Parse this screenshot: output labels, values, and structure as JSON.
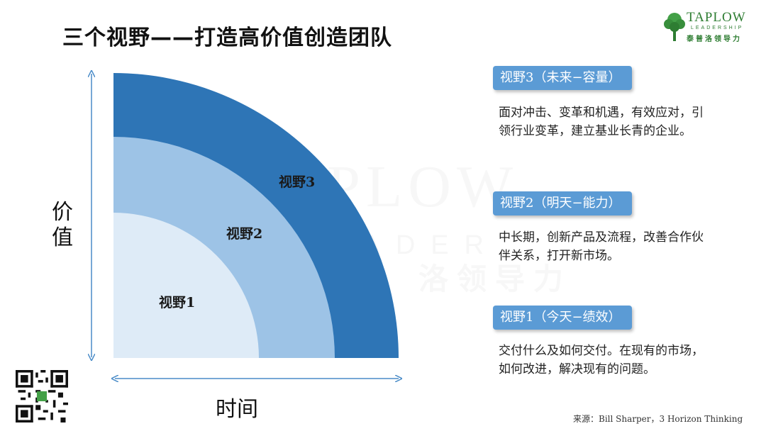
{
  "title": "三个视野——打造高价值创造团队",
  "logo": {
    "brand": "TAPLOW",
    "sub": "LEADERSHIP",
    "cn": "泰普洛领导力",
    "color": "#2e7d32"
  },
  "watermark": {
    "line1": "TAPLOW",
    "line2": "LEADER",
    "line3": "洛领导力"
  },
  "axes": {
    "y_label": "价值",
    "x_label": "时间"
  },
  "horizons": [
    {
      "ring_label": "视野3",
      "tag": "视野3（未来−容量）",
      "desc": "面对冲击、变革和机遇，有效应对，引领行业变革，建立基业长青的企业。",
      "color": "#2e75b6"
    },
    {
      "ring_label": "视野2",
      "tag": "视野2（明天−能力）",
      "desc": "中长期，创新产品及流程，改善合作伙伴关系，打开新市场。",
      "color": "#9dc3e6"
    },
    {
      "ring_label": "视野1",
      "tag": "视野1（今天−绩效）",
      "desc": "交付什么及如何交付。在现有的市场，如何改进，解决现有的问题。",
      "color": "#deebf7"
    }
  ],
  "tag_color": "#5b9bd5",
  "source": "来源：Bill Sharper，3 Horizon Thinking"
}
